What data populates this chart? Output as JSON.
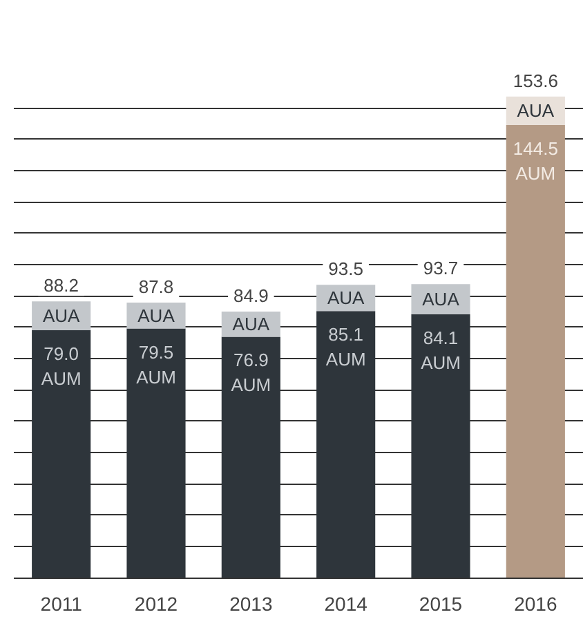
{
  "chart_data": {
    "type": "bar",
    "stacked": true,
    "categories": [
      "2011",
      "2012",
      "2013",
      "2014",
      "2015",
      "2016"
    ],
    "series": [
      {
        "name": "AUM",
        "colors": [
          "#2e353b",
          "#2e353b",
          "#2e353b",
          "#2e353b",
          "#2e353b",
          "#b49a85"
        ],
        "values": [
          79.0,
          79.5,
          76.9,
          85.1,
          84.1,
          144.5
        ],
        "value_labels": [
          "79.0",
          "79.5",
          "76.9",
          "85.1",
          "84.1",
          "144.5"
        ]
      },
      {
        "name": "AUA",
        "colors": [
          "#c3c7cb",
          "#c3c7cb",
          "#c3c7cb",
          "#c3c7cb",
          "#c3c7cb",
          "#e9e1da"
        ],
        "values": [
          9.2,
          8.3,
          8.0,
          8.4,
          9.6,
          9.1
        ]
      }
    ],
    "totals": [
      "88.2",
      "87.8",
      "84.9",
      "93.5",
      "93.7",
      "153.6"
    ],
    "yticks": [
      0,
      10,
      20,
      30,
      40,
      50,
      60,
      70,
      80,
      90,
      100,
      110,
      120,
      130,
      140,
      150
    ],
    "tick_labels": "x",
    "grid": "y"
  }
}
